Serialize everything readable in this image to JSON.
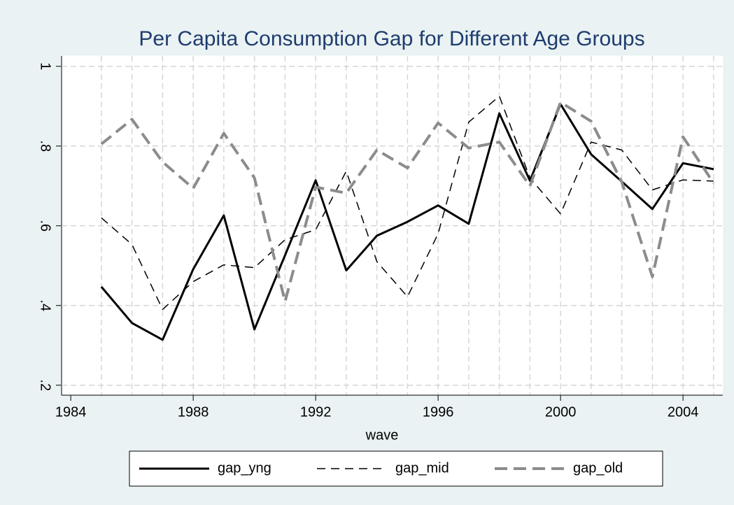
{
  "chart_data": {
    "type": "line",
    "title": "Per Capita Consumption Gap for Different Age Groups",
    "xlabel": "wave",
    "x": [
      1985,
      1986,
      1987,
      1988,
      1989,
      1990,
      1991,
      1992,
      1993,
      1994,
      1995,
      1996,
      1997,
      1998,
      1999,
      2000,
      2001,
      2002,
      2003,
      2004,
      2005
    ],
    "series": [
      {
        "name": "gap_yng",
        "color": "#000000",
        "dash": "solid",
        "values": [
          0.447,
          0.356,
          0.314,
          0.491,
          0.626,
          0.34,
          0.526,
          0.714,
          0.488,
          0.575,
          0.61,
          0.651,
          0.605,
          0.882,
          0.713,
          0.905,
          0.779,
          0.711,
          0.642,
          0.757,
          0.742
        ]
      },
      {
        "name": "gap_mid",
        "color": "#000000",
        "dash": "short",
        "values": [
          0.62,
          0.553,
          0.39,
          0.46,
          0.502,
          0.495,
          0.565,
          0.59,
          0.737,
          0.51,
          0.422,
          0.58,
          0.86,
          0.925,
          0.72,
          0.63,
          0.81,
          0.79,
          0.69,
          0.715,
          0.712
        ]
      },
      {
        "name": "gap_old",
        "color": "#8c8c8c",
        "dash": "long",
        "values": [
          0.805,
          0.867,
          0.76,
          0.694,
          0.832,
          0.72,
          0.41,
          0.697,
          0.682,
          0.79,
          0.745,
          0.858,
          0.795,
          0.81,
          0.7,
          0.91,
          0.862,
          0.71,
          0.472,
          0.823,
          0.707
        ]
      }
    ],
    "xlim": [
      1983.7,
      2005.3
    ],
    "ylim": [
      0.175,
      1.026
    ],
    "xticks": [
      1984,
      1988,
      1992,
      1996,
      2000,
      2004
    ],
    "yticks": [
      {
        "value": 0.2,
        "label": ".2"
      },
      {
        "value": 0.4,
        "label": ".4"
      },
      {
        "value": 0.6,
        "label": ".6"
      },
      {
        "value": 0.8,
        "label": ".8"
      },
      1
    ],
    "grid": true,
    "legend": "bottom"
  }
}
